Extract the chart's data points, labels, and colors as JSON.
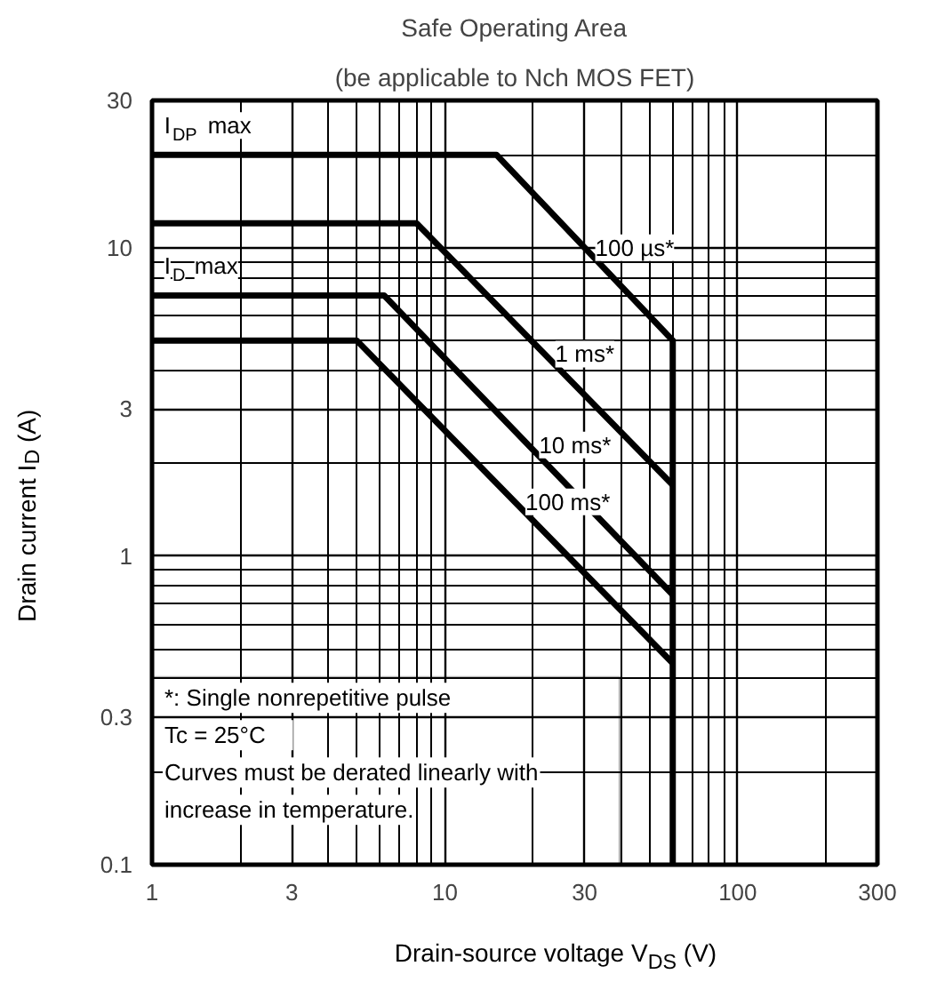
{
  "chart_data": {
    "type": "line",
    "title": "Safe Operating Area",
    "subtitle": "(be applicable to Nch MOS FET)",
    "xlabel": "Drain-source voltage  V$_{DS}$   (V)",
    "ylabel": "Drain current   I$_{D}$    (A)",
    "log": "xy",
    "xlim": [
      1,
      300
    ],
    "ylim": [
      0.1,
      30
    ],
    "xticks": [
      1,
      3,
      10,
      30,
      100,
      300
    ],
    "yticks": [
      0.1,
      0.3,
      1,
      3,
      10,
      30
    ],
    "grid": true,
    "marker": "none",
    "line_style": "solid",
    "series": [
      {
        "name": "100 µs*",
        "color": "#000000",
        "x": [
          1,
          15,
          60,
          60
        ],
        "values": [
          20,
          20,
          5,
          0.1
        ]
      },
      {
        "name": "1 ms*",
        "color": "#000000",
        "x": [
          1,
          8,
          60
        ],
        "values": [
          12,
          12,
          1.7
        ]
      },
      {
        "name": "10 ms*",
        "color": "#000000",
        "x": [
          1,
          6.2,
          60
        ],
        "values": [
          7,
          7,
          0.75
        ]
      },
      {
        "name": "100 ms*",
        "color": "#000000",
        "x": [
          1,
          5,
          60
        ],
        "values": [
          5,
          5,
          0.45
        ]
      }
    ],
    "annotations": [
      {
        "text": "I$_{DP}$ max",
        "x": 1.1,
        "y": 20
      },
      {
        "text": "I$_{D}$ max",
        "x": 1.1,
        "y": 7
      },
      "*: Single nonrepetitive pulse",
      "Tc = 25°C",
      "Curves must be derated linearly with increase in temperature."
    ]
  }
}
